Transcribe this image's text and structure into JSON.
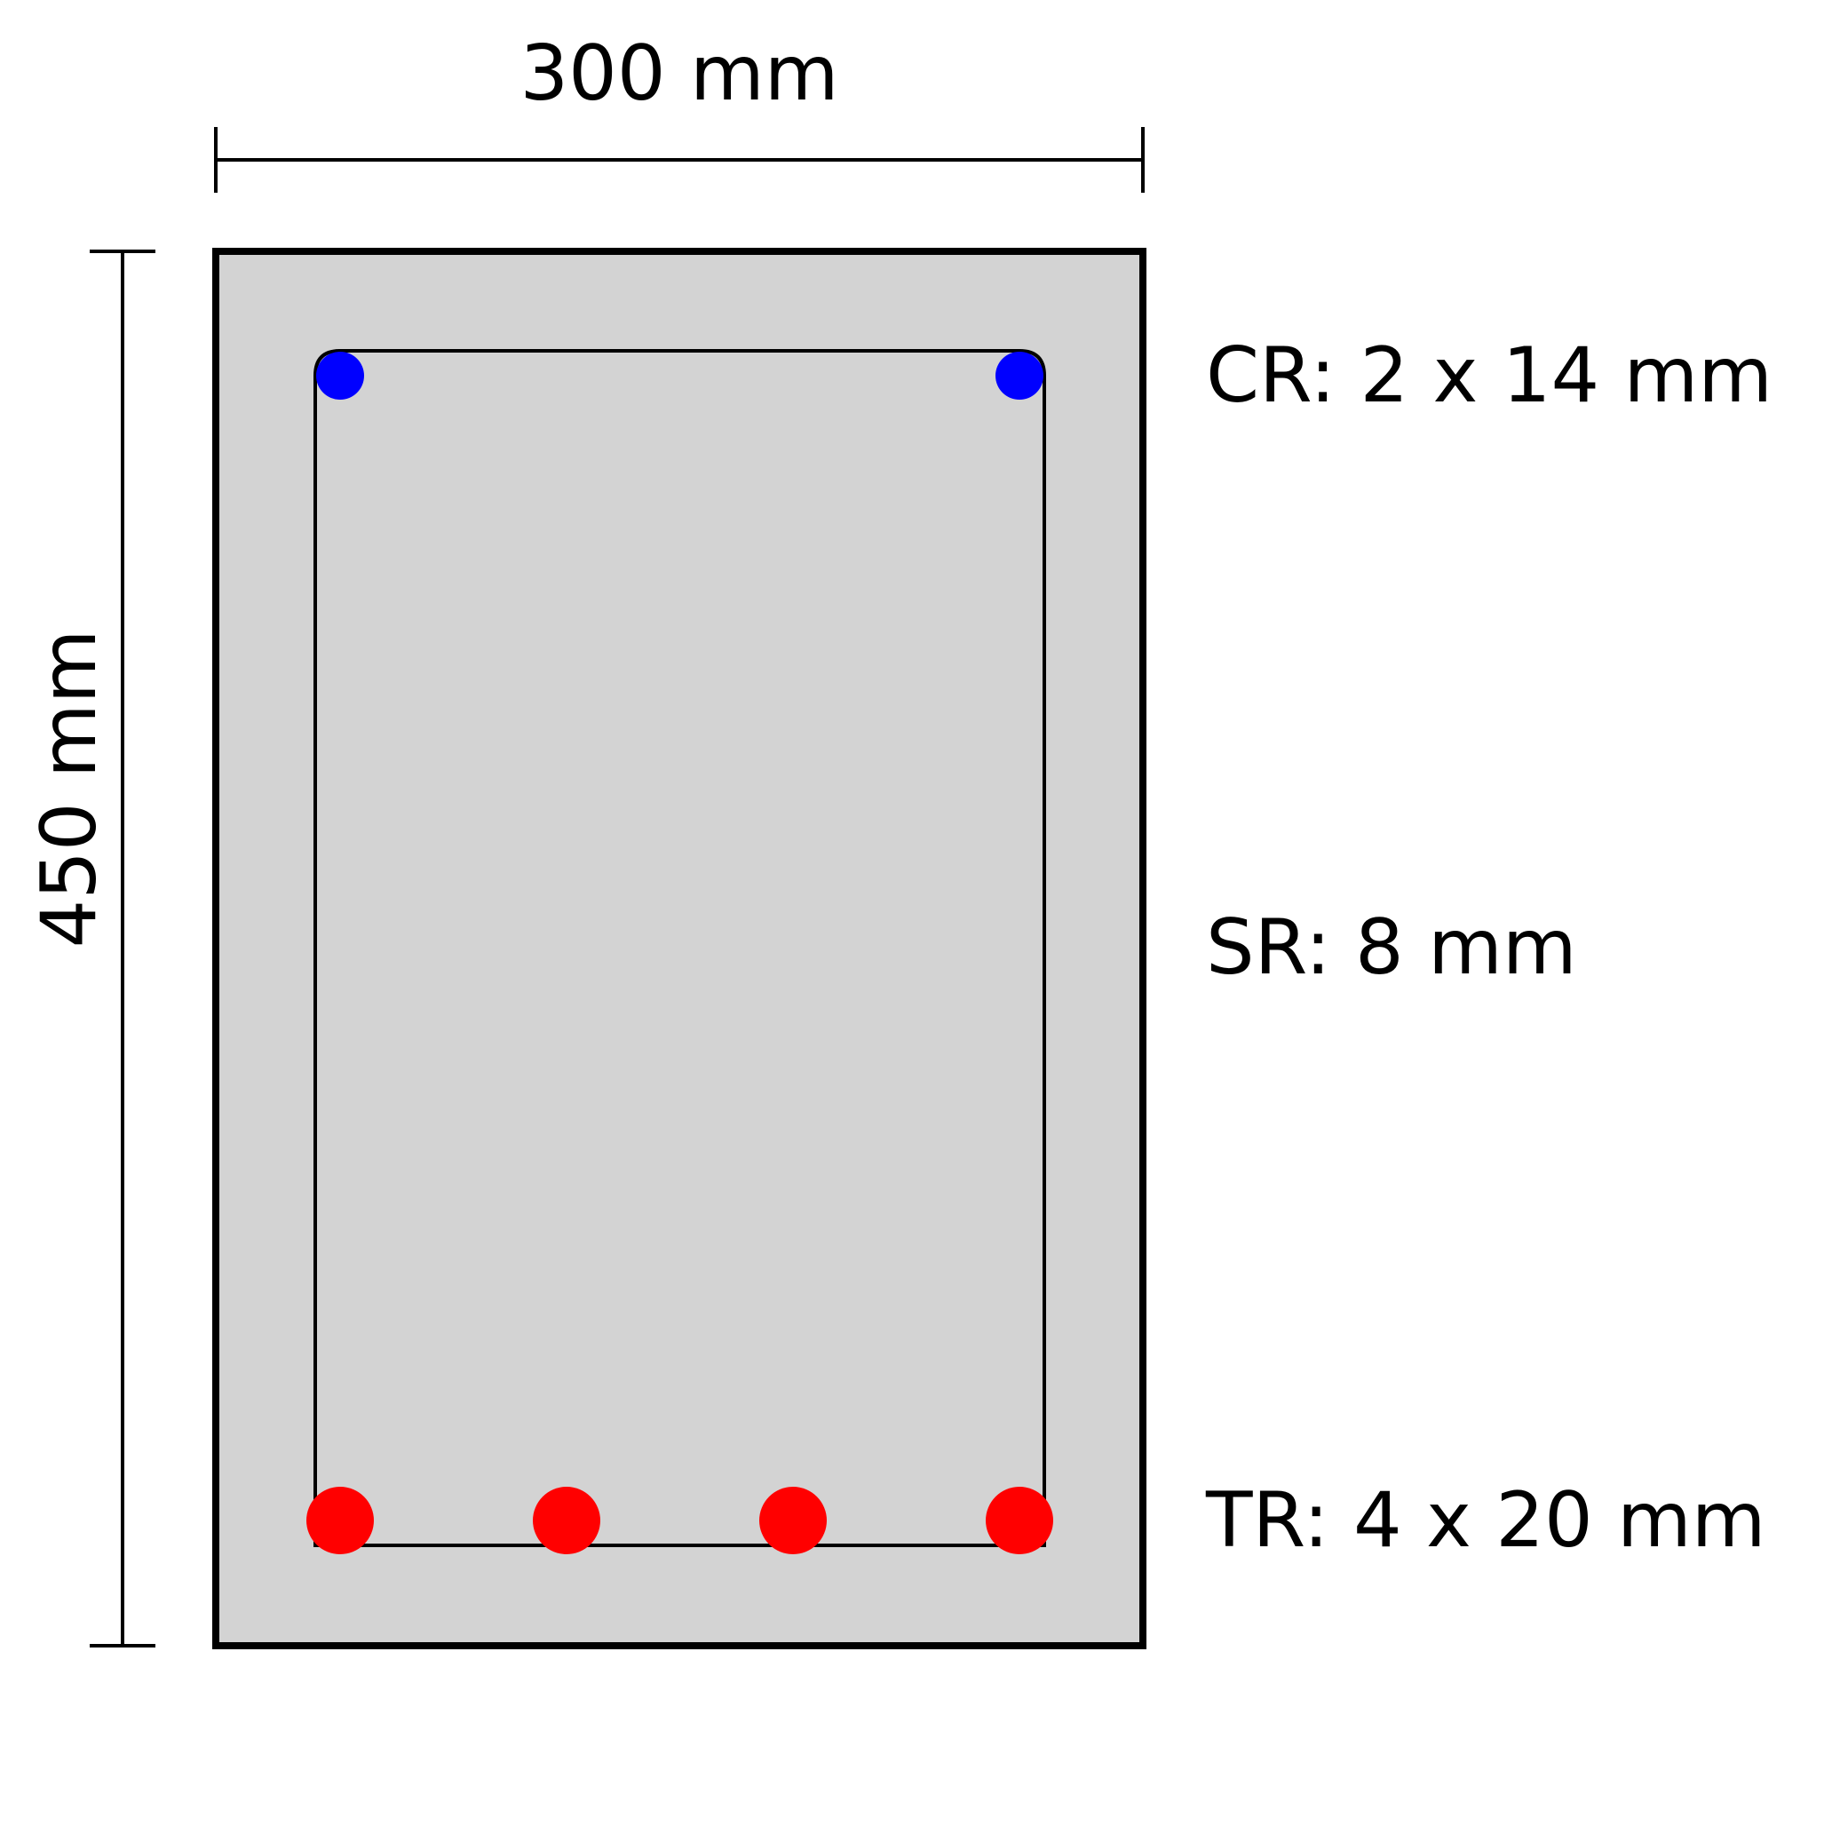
{
  "dimensions": {
    "width_label": "300 mm",
    "height_label": "450 mm"
  },
  "labels": {
    "compression": "CR: 2 x 14 mm",
    "stirrup": "SR: 8 mm",
    "tension": "TR: 4 x 20 mm"
  },
  "colors": {
    "concrete_fill": "#d3d3d3",
    "outline": "#000000",
    "compression_bar": "#0000ff",
    "tension_bar": "#ff0000"
  },
  "reinforcement": {
    "compression_count": 2,
    "tension_count": 4
  }
}
